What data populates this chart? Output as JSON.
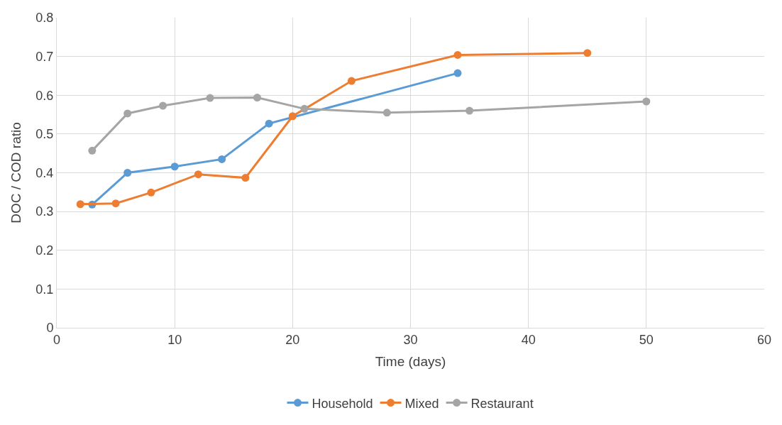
{
  "chart_data": {
    "type": "line",
    "xlabel": "Time (days)",
    "ylabel": "DOC / COD ratio",
    "xlim": [
      0,
      60
    ],
    "xticks": [
      0,
      10,
      20,
      30,
      40,
      50,
      60
    ],
    "ylim": [
      0,
      0.8
    ],
    "yticks": [
      0,
      0.1,
      0.2,
      0.3,
      0.4,
      0.5,
      0.6,
      0.7,
      0.8
    ],
    "grid": true,
    "legend": "bottom",
    "marker": "circle",
    "line_style": "solid",
    "series": [
      {
        "name": "Household",
        "color": "#5b9bd5",
        "x": [
          3,
          6,
          10,
          14,
          18,
          34
        ],
        "values": [
          0.318,
          0.4,
          0.416,
          0.435,
          0.527,
          0.657
        ]
      },
      {
        "name": "Mixed",
        "color": "#ed7d31",
        "x": [
          2,
          5,
          8,
          12,
          16,
          20,
          25,
          34,
          45
        ],
        "values": [
          0.319,
          0.321,
          0.349,
          0.396,
          0.387,
          0.546,
          0.637,
          0.704,
          0.709
        ]
      },
      {
        "name": "Restaurant",
        "color": "#a5a5a5",
        "x": [
          3,
          6,
          9,
          13,
          17,
          21,
          28,
          35,
          50
        ],
        "values": [
          0.457,
          0.553,
          0.573,
          0.593,
          0.594,
          0.565,
          0.555,
          0.56,
          0.584
        ]
      }
    ]
  }
}
